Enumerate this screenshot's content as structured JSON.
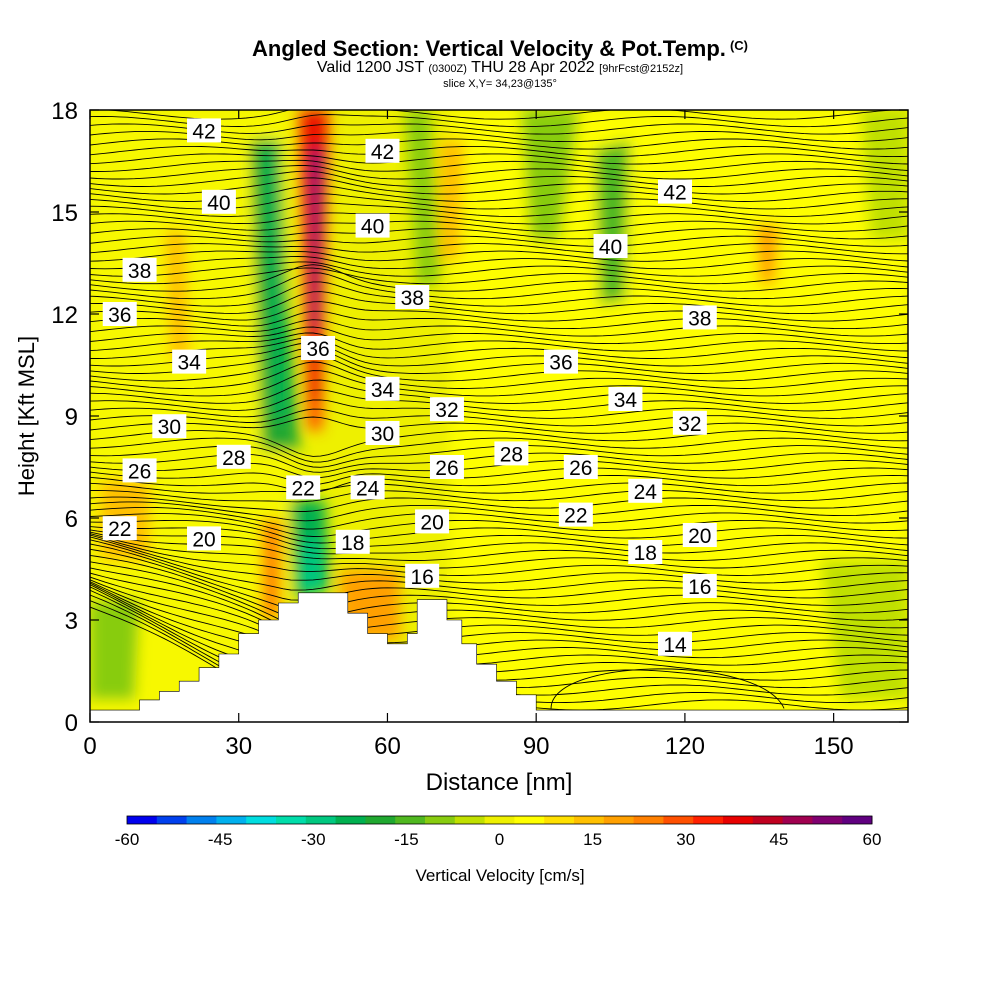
{
  "header": {
    "title": "Angled Section: Vertical Velocity & Pot.Temp.",
    "title_suffix": "(C)",
    "valid_a": "Valid 1200 JST",
    "valid_b": "(0300Z)",
    "valid_c": "THU 28 Apr 2022",
    "valid_d": "[9hrFcst@2152z]",
    "slice": "slice X,Y= 34,23@135°"
  },
  "chart_data": {
    "type": "heatmap",
    "xlabel": "Distance [nm]",
    "ylabel": "Height [Kft MSL]",
    "xlim": [
      0,
      165
    ],
    "ylim": [
      0,
      18
    ],
    "xticks": [
      0,
      30,
      60,
      90,
      120,
      150
    ],
    "yticks": [
      0,
      3,
      6,
      9,
      12,
      15,
      18
    ],
    "colorbar": {
      "label": "Vertical Velocity [cm/s]",
      "ticks": [
        -60,
        -45,
        -30,
        -15,
        0,
        15,
        30,
        45,
        60
      ],
      "levels": [
        -60,
        -55,
        -50,
        -45,
        -40,
        -35,
        -30,
        -25,
        -20,
        -15,
        -10,
        -5,
        0,
        5,
        10,
        15,
        20,
        25,
        30,
        35,
        40,
        45,
        50,
        55,
        60
      ],
      "colors": [
        "#0000ee",
        "#0040ee",
        "#0080ee",
        "#00b0ee",
        "#00dde0",
        "#00ddaa",
        "#00c880",
        "#00b050",
        "#20a830",
        "#50b820",
        "#88cc10",
        "#c0e000",
        "#eef000",
        "#ffff00",
        "#ffe000",
        "#ffc000",
        "#ffa000",
        "#ff8000",
        "#ff5000",
        "#ff2000",
        "#e80000",
        "#c00020",
        "#a00050",
        "#800070",
        "#600080"
      ]
    },
    "terrain": [
      [
        0,
        0.35
      ],
      [
        10,
        0.35
      ],
      [
        10,
        0.65
      ],
      [
        14,
        0.65
      ],
      [
        14,
        0.9
      ],
      [
        18,
        0.9
      ],
      [
        18,
        1.2
      ],
      [
        22,
        1.2
      ],
      [
        22,
        1.6
      ],
      [
        26,
        1.6
      ],
      [
        26,
        2.0
      ],
      [
        30,
        2.0
      ],
      [
        30,
        2.6
      ],
      [
        34,
        2.6
      ],
      [
        34,
        3.0
      ],
      [
        38,
        3.0
      ],
      [
        38,
        3.5
      ],
      [
        42,
        3.5
      ],
      [
        42,
        3.8
      ],
      [
        52,
        3.8
      ],
      [
        52,
        3.2
      ],
      [
        56,
        3.2
      ],
      [
        56,
        2.6
      ],
      [
        60,
        2.6
      ],
      [
        60,
        2.3
      ],
      [
        64,
        2.3
      ],
      [
        64,
        2.6
      ],
      [
        66,
        2.6
      ],
      [
        66,
        3.6
      ],
      [
        72,
        3.6
      ],
      [
        72,
        3.0
      ],
      [
        75,
        3.0
      ],
      [
        75,
        2.3
      ],
      [
        78,
        2.3
      ],
      [
        78,
        1.7
      ],
      [
        82,
        1.7
      ],
      [
        82,
        1.2
      ],
      [
        86,
        1.2
      ],
      [
        86,
        0.8
      ],
      [
        90,
        0.8
      ],
      [
        90,
        0.35
      ],
      [
        165,
        0.35
      ],
      [
        165,
        0
      ]
    ],
    "contour_labels": [
      {
        "value": "42",
        "x": 23,
        "y": 17.4
      },
      {
        "value": "42",
        "x": 59,
        "y": 16.8
      },
      {
        "value": "42",
        "x": 118,
        "y": 15.6
      },
      {
        "value": "40",
        "x": 26,
        "y": 15.3
      },
      {
        "value": "40",
        "x": 57,
        "y": 14.6
      },
      {
        "value": "40",
        "x": 105,
        "y": 14.0
      },
      {
        "value": "38",
        "x": 10,
        "y": 13.3
      },
      {
        "value": "38",
        "x": 65,
        "y": 12.5
      },
      {
        "value": "38",
        "x": 123,
        "y": 11.9
      },
      {
        "value": "36",
        "x": 6,
        "y": 12.0
      },
      {
        "value": "36",
        "x": 46,
        "y": 11.0
      },
      {
        "value": "36",
        "x": 95,
        "y": 10.6
      },
      {
        "value": "34",
        "x": 20,
        "y": 10.6
      },
      {
        "value": "34",
        "x": 59,
        "y": 9.8
      },
      {
        "value": "34",
        "x": 108,
        "y": 9.5
      },
      {
        "value": "32",
        "x": 72,
        "y": 9.2
      },
      {
        "value": "32",
        "x": 121,
        "y": 8.8
      },
      {
        "value": "30",
        "x": 16,
        "y": 8.7
      },
      {
        "value": "30",
        "x": 59,
        "y": 8.5
      },
      {
        "value": "28",
        "x": 29,
        "y": 7.8
      },
      {
        "value": "28",
        "x": 85,
        "y": 7.9
      },
      {
        "value": "26",
        "x": 10,
        "y": 7.4
      },
      {
        "value": "26",
        "x": 72,
        "y": 7.5
      },
      {
        "value": "26",
        "x": 99,
        "y": 7.5
      },
      {
        "value": "24",
        "x": 56,
        "y": 6.9
      },
      {
        "value": "24",
        "x": 112,
        "y": 6.8
      },
      {
        "value": "22",
        "x": 43,
        "y": 6.9
      },
      {
        "value": "22",
        "x": 6,
        "y": 5.7
      },
      {
        "value": "22",
        "x": 98,
        "y": 6.1
      },
      {
        "value": "20",
        "x": 23,
        "y": 5.4
      },
      {
        "value": "20",
        "x": 69,
        "y": 5.9
      },
      {
        "value": "20",
        "x": 123,
        "y": 5.5
      },
      {
        "value": "18",
        "x": 53,
        "y": 5.3
      },
      {
        "value": "18",
        "x": 112,
        "y": 5.0
      },
      {
        "value": "16",
        "x": 67,
        "y": 4.3
      },
      {
        "value": "16",
        "x": 123,
        "y": 4.0
      },
      {
        "value": "14",
        "x": 118,
        "y": 2.3
      }
    ]
  }
}
